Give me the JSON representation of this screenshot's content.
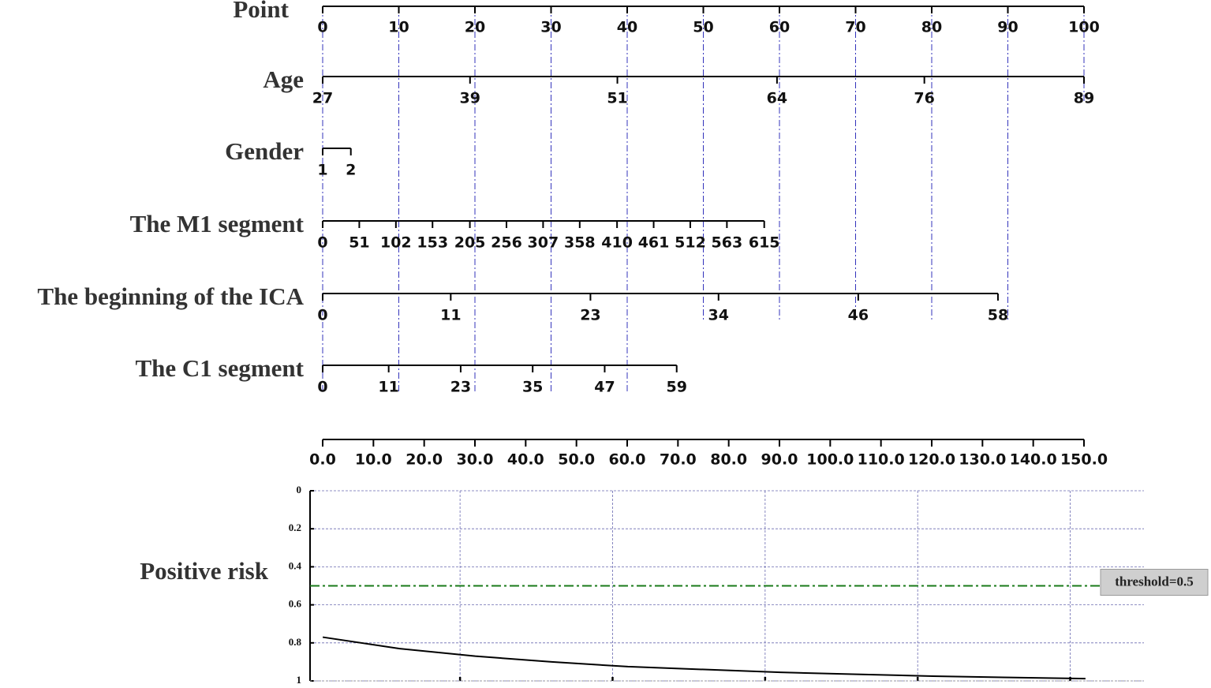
{
  "chart_data": {
    "type": "nomogram",
    "points": {
      "label": "Point",
      "lim": [
        0,
        100
      ],
      "ticks": [
        0,
        10,
        20,
        30,
        40,
        50,
        60,
        70,
        80,
        90,
        100
      ]
    },
    "variables": [
      {
        "label": "Age",
        "lim": [
          27,
          89
        ],
        "points": [
          0,
          100
        ],
        "ticks": [
          27,
          39,
          51,
          64,
          76,
          89
        ]
      },
      {
        "label": "Gender",
        "lim": [
          1,
          2
        ],
        "points": [
          0,
          3.7
        ],
        "ticks": [
          1,
          2
        ]
      },
      {
        "label": "The M1 segment",
        "lim": [
          0,
          615
        ],
        "points": [
          0,
          58
        ],
        "ticks": [
          0,
          51,
          102,
          153,
          205,
          256,
          307,
          358,
          410,
          461,
          512,
          563,
          615
        ]
      },
      {
        "label": "The beginning of the ICA",
        "lim": [
          0,
          58
        ],
        "points": [
          0,
          88.7
        ],
        "ticks": [
          0,
          11,
          23,
          34,
          46,
          58
        ]
      },
      {
        "label": "The C1 segment",
        "lim": [
          0,
          59
        ],
        "points": [
          0,
          46.5
        ],
        "ticks": [
          0,
          11,
          23,
          35,
          47,
          59
        ]
      }
    ],
    "total_points": {
      "lim": [
        0,
        150
      ],
      "ticks": [
        {
          "value": 0,
          "label": "0.0"
        },
        {
          "value": 10,
          "label": "10.0"
        },
        {
          "value": 20,
          "label": "20.0"
        },
        {
          "value": 30,
          "label": "30.0"
        },
        {
          "value": 40,
          "label": "40.0"
        },
        {
          "value": 50,
          "label": "50.0"
        },
        {
          "value": 60,
          "label": "60.0"
        },
        {
          "value": 70,
          "label": "70.0"
        },
        {
          "value": 80,
          "label": "80.0"
        },
        {
          "value": 90,
          "label": "90.0"
        },
        {
          "value": 100,
          "label": "100.0"
        },
        {
          "value": 110,
          "label": "110.0"
        },
        {
          "value": 120,
          "label": "120.0"
        },
        {
          "value": 130,
          "label": "130.0"
        },
        {
          "value": 140,
          "label": "140.0"
        },
        {
          "value": 150,
          "label": "150.0"
        }
      ]
    },
    "risk": {
      "label": "Positive risk",
      "xlim": [
        -2.5,
        161.5
      ],
      "xticks": [
        27,
        57,
        87,
        117,
        147
      ],
      "ylim": [
        0,
        1
      ],
      "yticks": [
        0,
        0.2,
        0.4,
        0.6,
        0.8,
        1
      ],
      "grid": true,
      "color": "#000000",
      "x": [
        0,
        15,
        30,
        45,
        60,
        75,
        90,
        105,
        120,
        135,
        150
      ],
      "values": [
        0.77,
        0.83,
        0.87,
        0.9,
        0.925,
        0.94,
        0.955,
        0.965,
        0.975,
        0.982,
        0.988
      ],
      "threshold": 0.5,
      "threshold_label": "threshold=0.5",
      "threshold_color": "#1a7a1a"
    }
  }
}
